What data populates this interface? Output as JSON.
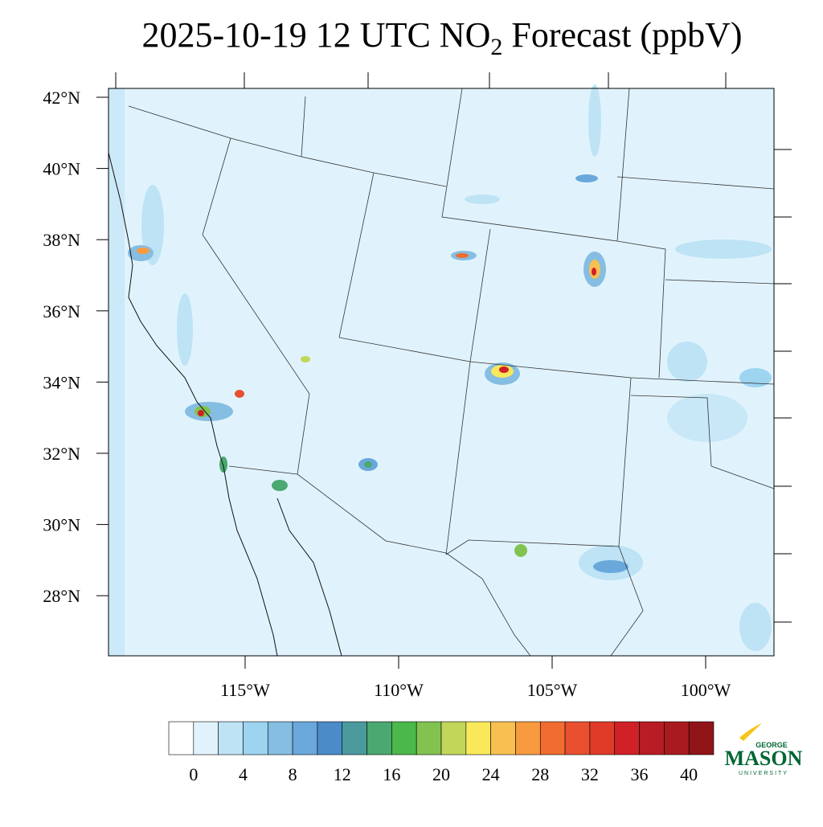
{
  "title": {
    "main": "2025-10-19 12 UTC NO",
    "subscript": "2",
    "rest": " Forecast (ppbV)"
  },
  "map": {
    "lat_labels": [
      "42°N",
      "40°N",
      "38°N",
      "36°N",
      "34°N",
      "32°N",
      "30°N",
      "28°N"
    ],
    "lon_labels": [
      "115°W",
      "110°W",
      "105°W",
      "100°W"
    ]
  },
  "colorbar": {
    "colors": [
      "#ffffff",
      "#e0f3fc",
      "#bde3f5",
      "#9dd4f0",
      "#86bde2",
      "#6aa8dc",
      "#4a8bc8",
      "#4a9a9e",
      "#4aa870",
      "#4ab84a",
      "#82c350",
      "#c2d65a",
      "#f8e85a",
      "#f8c050",
      "#f89a40",
      "#f06c30",
      "#e85030",
      "#e03a28",
      "#d02028",
      "#b81c24",
      "#a81a20",
      "#901418"
    ],
    "tick_labels": [
      "0",
      "4",
      "8",
      "12",
      "16",
      "20",
      "24",
      "28",
      "32",
      "36",
      "40"
    ]
  },
  "logo": {
    "top": "GEORGE",
    "main": "MASON",
    "bottom": "UNIVERSITY"
  }
}
